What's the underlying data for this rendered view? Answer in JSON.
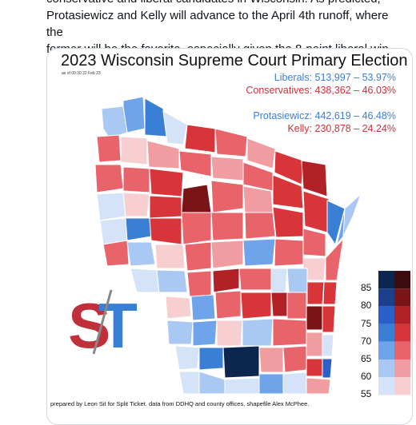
{
  "post": {
    "lines": [
      "conservative and liberal candidates in Wisconsin. As predicted,",
      "Protasiewicz and Kelly will advance to the April 4th runoff, where the",
      "former will be the favorite, especially given the 8-point liberal win."
    ]
  },
  "map": {
    "title": "2023 Wisconsin Supreme Court Primary Election",
    "as_of": "as of 00:30 22 Feb 23",
    "liberals": "Liberals: 513,997 – 53.97%",
    "conservatives": "Conservatives: 438,362 – 46.03%",
    "protasiewicz": "Protasiewicz: 442,619 – 46.48%",
    "kelly": "Kelly: 230,878 – 24.24%",
    "footer": "prepared by Leon Sit for Split Ticket. data from DDHQ and county offices. shapefile Alex McPhee.",
    "logo_text": "ST",
    "colors": {
      "liberal": "#3a7fd6",
      "conservative": "#d0303a"
    },
    "legend": {
      "labels": [
        "85",
        "80",
        "75",
        "70",
        "65",
        "60",
        "55"
      ],
      "blue": [
        "#0d2650",
        "#1b3f8a",
        "#2a60c8",
        "#3a7fd6",
        "#6fa3ea",
        "#a9c8f3",
        "#d4e3f8"
      ],
      "red": [
        "#3d0a0d",
        "#7a1517",
        "#b22125",
        "#d8353a",
        "#e8636a",
        "#f09ca0",
        "#f7cfd1"
      ]
    }
  }
}
